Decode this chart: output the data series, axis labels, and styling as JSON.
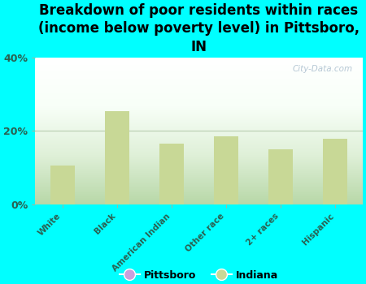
{
  "title": "Breakdown of poor residents within races\n(income below poverty level) in Pittsboro,\nIN",
  "categories": [
    "White",
    "Black",
    "American Indian",
    "Other race",
    "2+ races",
    "Hispanic"
  ],
  "pittsboro_values": [
    0,
    0,
    0,
    0,
    0,
    0
  ],
  "indiana_values": [
    10.5,
    25.5,
    16.5,
    18.5,
    15.0,
    18.0
  ],
  "bar_color_pittsboro": "#c9a0dc",
  "bar_color_indiana": "#c8d896",
  "background_color": "#00ffff",
  "ylim": [
    0,
    40
  ],
  "yticks": [
    0,
    20,
    40
  ],
  "ytick_labels": [
    "0%",
    "20%",
    "40%"
  ],
  "grid_color": "#b8ccb0",
  "title_fontsize": 12,
  "tick_label_color": "#2a6050",
  "legend_pittsboro": "Pittsboro",
  "legend_indiana": "Indiana",
  "watermark": "City-Data.com"
}
